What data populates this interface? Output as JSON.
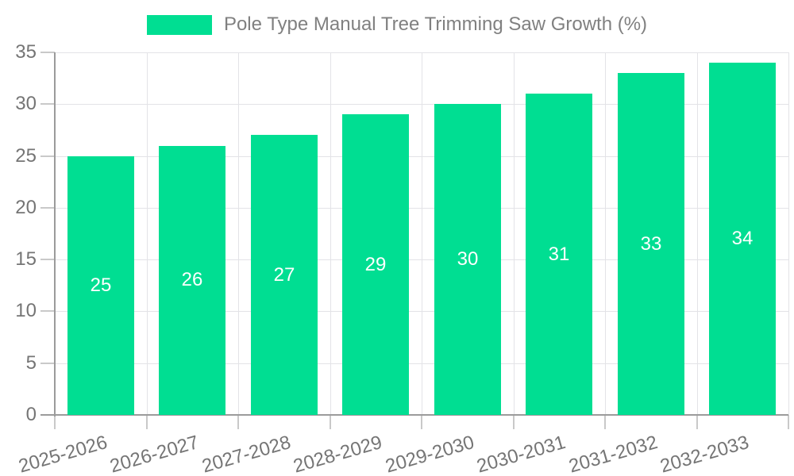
{
  "legend": {
    "label": "Pole Type Manual Tree Trimming Saw Growth (%)"
  },
  "colors": {
    "bar": "#00DE92",
    "bar_value_text": "#ffffff",
    "legend_text": "#808080",
    "tick_text": "#757575",
    "gridline": "#e3e3e7",
    "tick_mark": "#c9c9c9",
    "axis_line": "#9b9b9b",
    "background": "#ffffff"
  },
  "chart_data": {
    "type": "bar",
    "title": "Pole Type Manual Tree Trimming Saw Growth (%)",
    "legend_entries": [
      "Pole Type Manual Tree Trimming Saw Growth (%)"
    ],
    "legend_position": "top-center",
    "categories": [
      "2025-2026",
      "2026-2027",
      "2027-2028",
      "2028-2029",
      "2029-2030",
      "2030-2031",
      "2031-2032",
      "2032-2033"
    ],
    "series": [
      {
        "name": "Pole Type Manual Tree Trimming Saw Growth (%)",
        "values": [
          25,
          26,
          27,
          29,
          30,
          31,
          33,
          34
        ]
      }
    ],
    "value_labels": [
      25,
      26,
      27,
      29,
      30,
      31,
      33,
      34
    ],
    "value_labels_position": "inside-center",
    "xlabel": "",
    "ylabel": "",
    "ylim": [
      0,
      35
    ],
    "yticks": [
      0,
      5,
      10,
      15,
      20,
      25,
      30,
      35
    ],
    "grid": true,
    "x_tick_rotation_deg": -16
  }
}
